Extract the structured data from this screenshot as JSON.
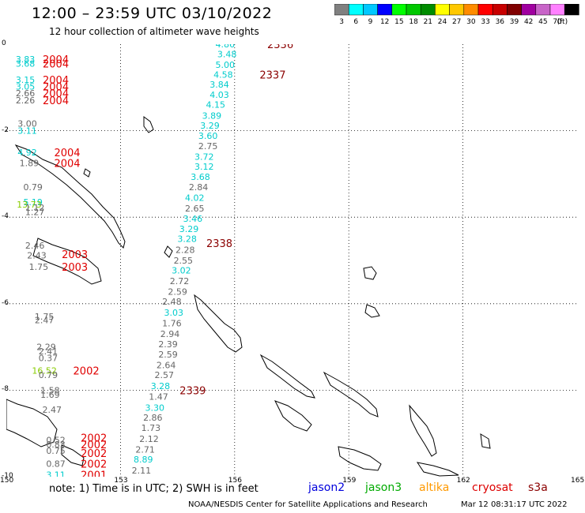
{
  "header": {
    "title": "12:00 – 23:59 UTC 03/10/2022",
    "subtitle": "12 hour collection of altimeter wave heights"
  },
  "legend": {
    "colors": [
      "#808080",
      "#00ffff",
      "#00c8ff",
      "#0000ff",
      "#00ff00",
      "#00c800",
      "#008c00",
      "#ffff00",
      "#ffc800",
      "#ff8c00",
      "#ff0000",
      "#c80000",
      "#800000",
      "#a000a0",
      "#c864c8",
      "#ff80ff",
      "#000000"
    ],
    "labels": [
      "3",
      "6",
      "9",
      "12",
      "15",
      "18",
      "21",
      "24",
      "27",
      "30",
      "33",
      "36",
      "39",
      "42",
      "45",
      "70",
      "(ft)"
    ]
  },
  "axes": {
    "x_ticks": [
      "150",
      "153",
      "156",
      "159",
      "162",
      "165"
    ],
    "y_ticks": [
      "0",
      "-2",
      "-4",
      "-6",
      "-8",
      "-10"
    ]
  },
  "tracks": [
    {
      "label": "2336",
      "color": "#8b0000",
      "lon": 157.2,
      "lat": 0.0
    },
    {
      "label": "2337",
      "color": "#8b0000",
      "lon": 157.0,
      "lat": -0.7
    },
    {
      "label": "2338",
      "color": "#8b0000",
      "lon": 155.6,
      "lat": -4.6
    },
    {
      "label": "2339",
      "color": "#8b0000",
      "lon": 154.9,
      "lat": -8.0
    },
    {
      "label": "2004",
      "color": "#e00000",
      "lon": 151.3,
      "lat": -0.35
    },
    {
      "label": "2004",
      "color": "#e00000",
      "lon": 151.3,
      "lat": -0.45
    },
    {
      "label": "2004",
      "color": "#e00000",
      "lon": 151.3,
      "lat": -0.82
    },
    {
      "label": "2004",
      "color": "#e00000",
      "lon": 151.3,
      "lat": -0.98
    },
    {
      "label": "2004",
      "color": "#e00000",
      "lon": 151.3,
      "lat": -1.13
    },
    {
      "label": "2004",
      "color": "#e00000",
      "lon": 151.3,
      "lat": -1.3
    },
    {
      "label": "2004",
      "color": "#e00000",
      "lon": 151.6,
      "lat": -2.5
    },
    {
      "label": "2004",
      "color": "#e00000",
      "lon": 151.6,
      "lat": -2.75
    },
    {
      "label": "2003",
      "color": "#e00000",
      "lon": 151.8,
      "lat": -4.85
    },
    {
      "label": "2003",
      "color": "#e00000",
      "lon": 151.8,
      "lat": -5.15
    },
    {
      "label": "2002",
      "color": "#e00000",
      "lon": 152.1,
      "lat": -7.55
    },
    {
      "label": "2002",
      "color": "#e00000",
      "lon": 152.3,
      "lat": -9.1
    },
    {
      "label": "2002",
      "color": "#e00000",
      "lon": 152.3,
      "lat": -9.25
    },
    {
      "label": "2002",
      "color": "#e00000",
      "lon": 152.3,
      "lat": -9.45
    },
    {
      "label": "2002",
      "color": "#e00000",
      "lon": 152.3,
      "lat": -9.7
    },
    {
      "label": "2001",
      "color": "#e00000",
      "lon": 152.3,
      "lat": -9.95
    }
  ],
  "wave_heights": [
    {
      "v": "4.86",
      "c": "#00cccc",
      "lon": 155.75,
      "lat": 0.0
    },
    {
      "v": "3.48",
      "c": "#00cccc",
      "lon": 155.8,
      "lat": -0.23
    },
    {
      "v": "5.00",
      "c": "#00cccc",
      "lon": 155.75,
      "lat": -0.47
    },
    {
      "v": "4.58",
      "c": "#00cccc",
      "lon": 155.7,
      "lat": -0.7
    },
    {
      "v": "3.84",
      "c": "#00cccc",
      "lon": 155.6,
      "lat": -0.93
    },
    {
      "v": "4.03",
      "c": "#00cccc",
      "lon": 155.6,
      "lat": -1.17
    },
    {
      "v": "4.15",
      "c": "#00cccc",
      "lon": 155.5,
      "lat": -1.4
    },
    {
      "v": "3.89",
      "c": "#00cccc",
      "lon": 155.4,
      "lat": -1.65
    },
    {
      "v": "3.29",
      "c": "#00cccc",
      "lon": 155.35,
      "lat": -1.88
    },
    {
      "v": "3.60",
      "c": "#00cccc",
      "lon": 155.3,
      "lat": -2.12
    },
    {
      "v": "2.75",
      "c": "#666666",
      "lon": 155.3,
      "lat": -2.35
    },
    {
      "v": "3.72",
      "c": "#00cccc",
      "lon": 155.2,
      "lat": -2.6
    },
    {
      "v": "3.12",
      "c": "#00cccc",
      "lon": 155.2,
      "lat": -2.83
    },
    {
      "v": "3.68",
      "c": "#00cccc",
      "lon": 155.1,
      "lat": -3.07
    },
    {
      "v": "2.84",
      "c": "#666666",
      "lon": 155.05,
      "lat": -3.3
    },
    {
      "v": "4.02",
      "c": "#00cccc",
      "lon": 154.95,
      "lat": -3.55
    },
    {
      "v": "2.65",
      "c": "#666666",
      "lon": 154.95,
      "lat": -3.8
    },
    {
      "v": "3.46",
      "c": "#00cccc",
      "lon": 154.9,
      "lat": -4.03
    },
    {
      "v": "3.29",
      "c": "#00cccc",
      "lon": 154.8,
      "lat": -4.27
    },
    {
      "v": "3.28",
      "c": "#00cccc",
      "lon": 154.75,
      "lat": -4.5
    },
    {
      "v": "2.28",
      "c": "#666666",
      "lon": 154.7,
      "lat": -4.75
    },
    {
      "v": "2.55",
      "c": "#666666",
      "lon": 154.65,
      "lat": -5.0
    },
    {
      "v": "3.02",
      "c": "#00cccc",
      "lon": 154.6,
      "lat": -5.23
    },
    {
      "v": "2.72",
      "c": "#666666",
      "lon": 154.55,
      "lat": -5.47
    },
    {
      "v": "2.59",
      "c": "#666666",
      "lon": 154.5,
      "lat": -5.72
    },
    {
      "v": "2.48",
      "c": "#666666",
      "lon": 154.35,
      "lat": -5.95
    },
    {
      "v": "3.03",
      "c": "#00cccc",
      "lon": 154.4,
      "lat": -6.2
    },
    {
      "v": "1.76",
      "c": "#666666",
      "lon": 154.35,
      "lat": -6.45
    },
    {
      "v": "2.94",
      "c": "#666666",
      "lon": 154.3,
      "lat": -6.7
    },
    {
      "v": "2.39",
      "c": "#666666",
      "lon": 154.25,
      "lat": -6.93
    },
    {
      "v": "2.59",
      "c": "#666666",
      "lon": 154.25,
      "lat": -7.17
    },
    {
      "v": "2.64",
      "c": "#666666",
      "lon": 154.2,
      "lat": -7.42
    },
    {
      "v": "2.57",
      "c": "#666666",
      "lon": 154.15,
      "lat": -7.65
    },
    {
      "v": "3.28",
      "c": "#00cccc",
      "lon": 154.05,
      "lat": -7.9
    },
    {
      "v": "1.47",
      "c": "#666666",
      "lon": 154.0,
      "lat": -8.15
    },
    {
      "v": "3.30",
      "c": "#00cccc",
      "lon": 153.9,
      "lat": -8.4
    },
    {
      "v": "2.86",
      "c": "#666666",
      "lon": 153.85,
      "lat": -8.63
    },
    {
      "v": "1.73",
      "c": "#666666",
      "lon": 153.8,
      "lat": -8.87
    },
    {
      "v": "2.12",
      "c": "#666666",
      "lon": 153.75,
      "lat": -9.12
    },
    {
      "v": "2.71",
      "c": "#666666",
      "lon": 153.65,
      "lat": -9.37
    },
    {
      "v": "8.89",
      "c": "#00cccc",
      "lon": 153.6,
      "lat": -9.6
    },
    {
      "v": "2.11",
      "c": "#666666",
      "lon": 153.55,
      "lat": -9.85
    },
    {
      "v": "3.83",
      "c": "#00cccc",
      "lon": 150.5,
      "lat": -0.35
    },
    {
      "v": "3.68",
      "c": "#00cccc",
      "lon": 150.5,
      "lat": -0.45
    },
    {
      "v": "3.15",
      "c": "#00cccc",
      "lon": 150.5,
      "lat": -0.82
    },
    {
      "v": "3.05",
      "c": "#00cccc",
      "lon": 150.5,
      "lat": -0.98
    },
    {
      "v": "2.66",
      "c": "#666666",
      "lon": 150.5,
      "lat": -1.13
    },
    {
      "v": "2.26",
      "c": "#666666",
      "lon": 150.5,
      "lat": -1.3
    },
    {
      "v": "3.00",
      "c": "#666666",
      "lon": 150.55,
      "lat": -1.83
    },
    {
      "v": "3.11",
      "c": "#00cccc",
      "lon": 150.55,
      "lat": -2.0
    },
    {
      "v": "4.92",
      "c": "#00cccc",
      "lon": 150.55,
      "lat": -2.5
    },
    {
      "v": "1.89",
      "c": "#666666",
      "lon": 150.6,
      "lat": -2.75
    },
    {
      "v": "0.79",
      "c": "#666666",
      "lon": 150.7,
      "lat": -3.3
    },
    {
      "v": "5.19",
      "c": "#00cccc",
      "lon": 150.7,
      "lat": -3.65
    },
    {
      "v": "13.73",
      "c": "#88cc00",
      "lon": 150.6,
      "lat": -3.7
    },
    {
      "v": "1.12",
      "c": "#666666",
      "lon": 150.75,
      "lat": -3.78
    },
    {
      "v": "1.27",
      "c": "#666666",
      "lon": 150.75,
      "lat": -3.88
    },
    {
      "v": "2.46",
      "c": "#666666",
      "lon": 150.75,
      "lat": -4.65
    },
    {
      "v": "2.43",
      "c": "#666666",
      "lon": 150.8,
      "lat": -4.88
    },
    {
      "v": "1.75",
      "c": "#666666",
      "lon": 150.85,
      "lat": -5.15
    },
    {
      "v": "1.75",
      "c": "#666666",
      "lon": 151.0,
      "lat": -6.3
    },
    {
      "v": "2.47",
      "c": "#666666",
      "lon": 151.0,
      "lat": -6.38
    },
    {
      "v": "2.29",
      "c": "#666666",
      "lon": 151.05,
      "lat": -7.0
    },
    {
      "v": "2.41",
      "c": "#666666",
      "lon": 151.1,
      "lat": -7.1
    },
    {
      "v": "0.37",
      "c": "#666666",
      "lon": 151.1,
      "lat": -7.25
    },
    {
      "v": "16.52",
      "c": "#88cc00",
      "lon": 151.0,
      "lat": -7.55
    },
    {
      "v": "0.79",
      "c": "#666666",
      "lon": 151.1,
      "lat": -7.65
    },
    {
      "v": "1.58",
      "c": "#666666",
      "lon": 151.15,
      "lat": -8.0
    },
    {
      "v": "1.69",
      "c": "#666666",
      "lon": 151.15,
      "lat": -8.1
    },
    {
      "v": "2.47",
      "c": "#666666",
      "lon": 151.2,
      "lat": -8.45
    },
    {
      "v": "0.52",
      "c": "#666666",
      "lon": 151.3,
      "lat": -9.15
    },
    {
      "v": "0.83",
      "c": "#666666",
      "lon": 151.3,
      "lat": -9.25
    },
    {
      "v": "0.75",
      "c": "#666666",
      "lon": 151.3,
      "lat": -9.4
    },
    {
      "v": "0.87",
      "c": "#666666",
      "lon": 151.3,
      "lat": -9.7
    },
    {
      "v": "3.11",
      "c": "#00cccc",
      "lon": 151.3,
      "lat": -9.95
    }
  ],
  "footer": {
    "note": "note: 1) Time is in UTC; 2) SWH is in feet",
    "satellites": [
      {
        "name": "jason2",
        "color": "#0000dd"
      },
      {
        "name": "jason3",
        "color": "#00aa00"
      },
      {
        "name": "altika",
        "color": "#ff9900"
      },
      {
        "name": "cryosat",
        "color": "#dd0000"
      },
      {
        "name": "s3a",
        "color": "#8b0000"
      }
    ],
    "credits": "NOAA/NESDIS Center for Satellite Applications and Research",
    "timestamp": "Mar 12 08:31:17 UTC 2022"
  }
}
